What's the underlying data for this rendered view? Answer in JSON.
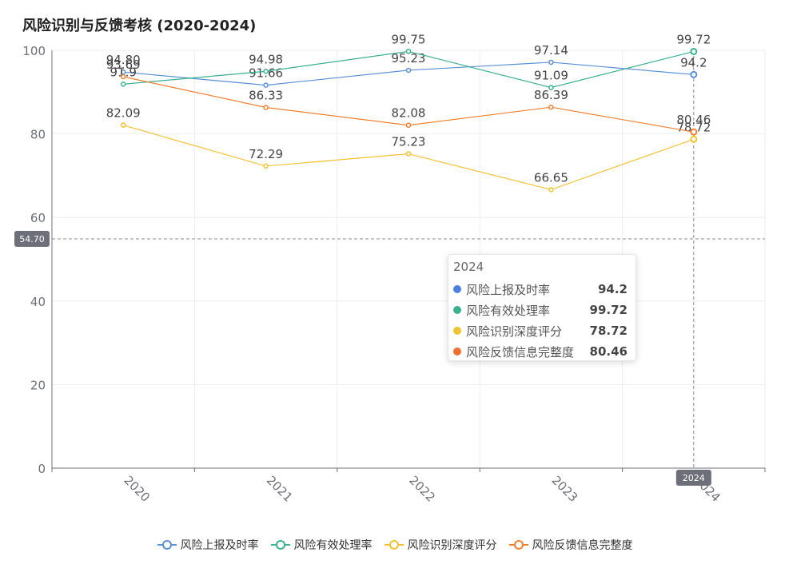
{
  "chart_data": {
    "type": "line",
    "title": "风险识别与反馈考核 (2020-2024)",
    "categories": [
      "2020",
      "2021",
      "2022",
      "2023",
      "2024"
    ],
    "ylim": [
      0,
      100
    ],
    "yticks": [
      0,
      20,
      40,
      60,
      80,
      100
    ],
    "grid": true,
    "legend_position": "bottom",
    "series": [
      {
        "name": "风险上报及时率",
        "color": "#5b8fd4",
        "values": [
          94.8,
          91.66,
          95.23,
          97.14,
          94.2
        ],
        "labels": [
          "94.80",
          "91.66",
          "95.23",
          "97.14",
          "94.2"
        ]
      },
      {
        "name": "风险有效处理率",
        "color": "#3bb08f",
        "values": [
          91.9,
          94.98,
          99.75,
          91.09,
          99.72
        ],
        "labels": [
          "91.9",
          "94.98",
          "99.75",
          "91.09",
          "99.72"
        ]
      },
      {
        "name": "风险识别深度评分",
        "color": "#f2c232",
        "values": [
          82.09,
          72.29,
          75.23,
          66.65,
          78.72
        ],
        "labels": [
          "82.09",
          "72.29",
          "75.23",
          "66.65",
          "78.72"
        ]
      },
      {
        "name": "风险反馈信息完整度",
        "color": "#f08030",
        "values": [
          93.69,
          86.33,
          82.08,
          86.39,
          80.46
        ],
        "labels": [
          "93.69",
          "86.33",
          "82.08",
          "86.39",
          "80.46"
        ]
      }
    ],
    "crosshair": {
      "y_value_label": "54.70",
      "x_label": "2024"
    }
  },
  "tooltip": {
    "title": "2024",
    "rows": [
      {
        "name": "风险上报及时率",
        "value": "94.2",
        "color": "#4a80e0"
      },
      {
        "name": "风险有效处理率",
        "value": "99.72",
        "color": "#3bb08f"
      },
      {
        "name": "风险识别深度评分",
        "value": "78.72",
        "color": "#f2c232"
      },
      {
        "name": "风险反馈信息完整度",
        "value": "80.46",
        "color": "#f07030"
      }
    ]
  }
}
